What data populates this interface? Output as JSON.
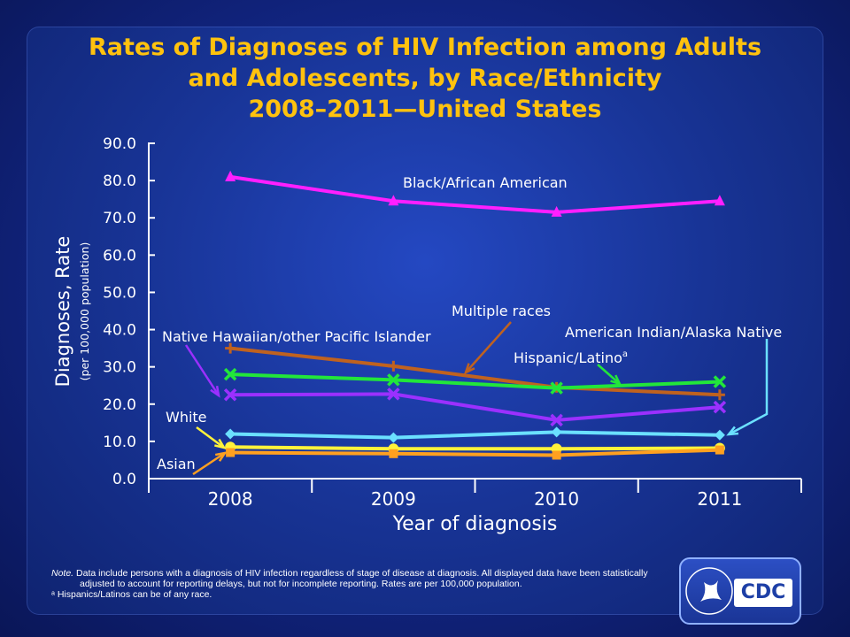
{
  "title": {
    "line1": "Rates of Diagnoses of HIV Infection among Adults",
    "line2": "and Adolescents, by Race/Ethnicity",
    "line3": "2008–2011—United States"
  },
  "chart_data": {
    "type": "line",
    "x": [
      "2008",
      "2009",
      "2010",
      "2011"
    ],
    "xlabel": "Year of diagnosis",
    "ylabel": "Diagnoses, Rate",
    "ylabel_sub": "(per 100,000 population)",
    "ylim": [
      0,
      90
    ],
    "yticks": [
      "0.0",
      "10.0",
      "20.0",
      "30.0",
      "40.0",
      "50.0",
      "60.0",
      "70.0",
      "80.0",
      "90.0"
    ],
    "grid": false,
    "series": [
      {
        "name": "Black/African American",
        "values": [
          81.0,
          74.5,
          71.5,
          74.5
        ],
        "color": "#ff1fff",
        "marker": "triangle"
      },
      {
        "name": "Multiple races",
        "values": [
          35.0,
          30.2,
          24.5,
          22.5
        ],
        "color": "#c0621f",
        "marker": "plus"
      },
      {
        "name": "Hispanic/Latino",
        "values": [
          28.0,
          26.5,
          24.3,
          26.0
        ],
        "color": "#22e63a",
        "marker": "x"
      },
      {
        "name": "Native Hawaiian/other Pacific Islander",
        "values": [
          22.5,
          22.7,
          15.7,
          19.2
        ],
        "color": "#9b30ff",
        "marker": "x"
      },
      {
        "name": "American Indian/Alaska Native",
        "values": [
          12.0,
          11.0,
          12.5,
          11.7
        ],
        "color": "#6be0ff",
        "marker": "diamond"
      },
      {
        "name": "White",
        "values": [
          8.5,
          8.0,
          8.0,
          8.2
        ],
        "color": "#fff23a",
        "marker": "circle"
      },
      {
        "name": "Asian",
        "values": [
          7.0,
          6.7,
          6.3,
          7.7
        ],
        "color": "#ffa020",
        "marker": "square"
      }
    ],
    "labels": {
      "black": "Black/African American",
      "multiple": "Multiple races",
      "hispanic": "Hispanic/Latino",
      "hispanic_sup": "a",
      "nhopi": "Native Hawaiian/other Pacific Islander",
      "aian": "American Indian/Alaska Native",
      "white": "White",
      "asian": "Asian"
    }
  },
  "notes": {
    "note_label": "Note.",
    "note_text": " Data include persons with a diagnosis of HIV infection regardless of stage of disease at diagnosis. All displayed data have been statistically adjusted to account for reporting delays, but not for incomplete reporting. Rates are per 100,000 population.",
    "footnote": "ᵃ Hispanics/Latinos can be of any race."
  },
  "logo": {
    "text": "CDC"
  },
  "colors": {
    "title": "#ffc20e",
    "axis": "#ffffff",
    "background": "#183496"
  }
}
